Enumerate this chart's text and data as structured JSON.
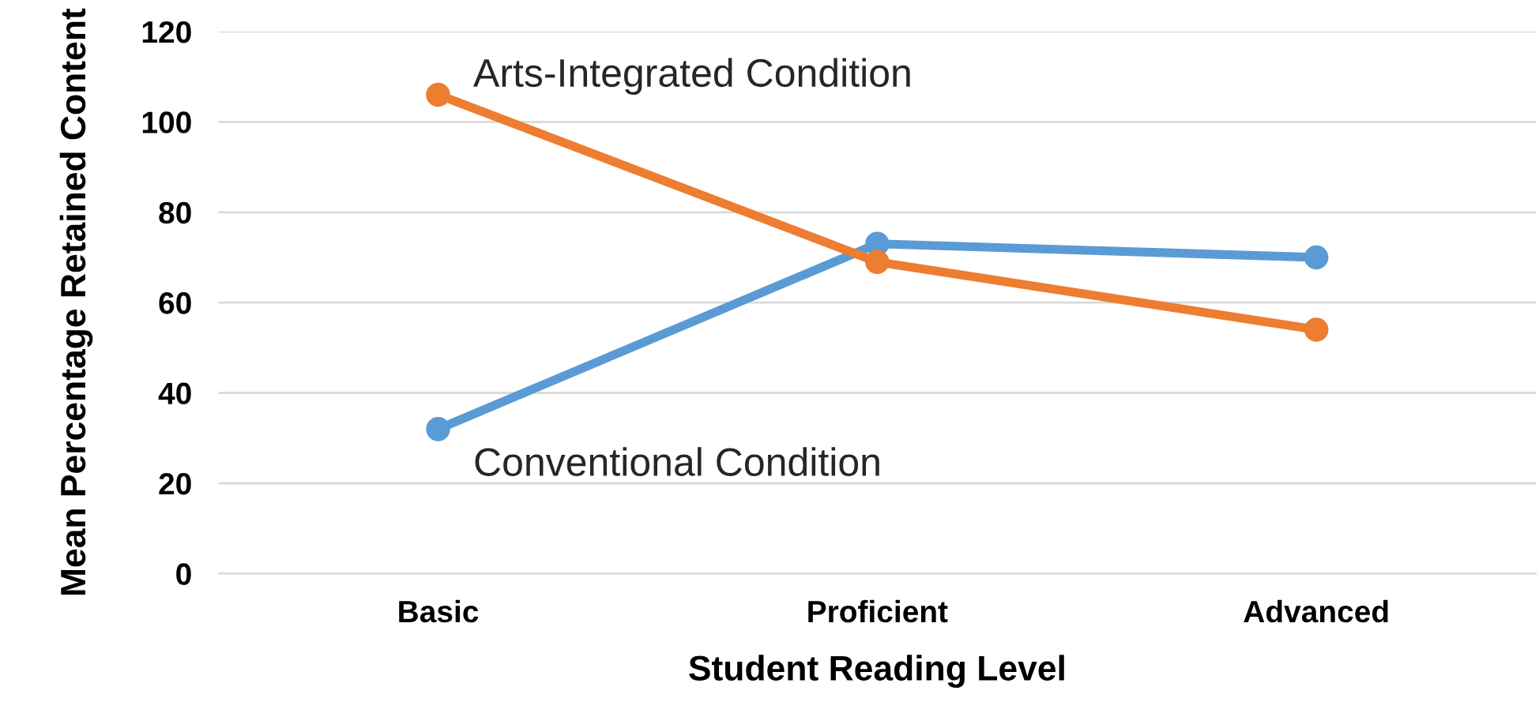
{
  "chart_data": {
    "type": "line",
    "xlabel": "Student Reading Level",
    "ylabel": "Mean Percentage Retained Content",
    "categories": [
      "Basic",
      "Proficient",
      "Advanced"
    ],
    "series": [
      {
        "name": "Conventional Condition",
        "color": "#5b9bd5",
        "values": [
          32,
          73,
          70
        ]
      },
      {
        "name": "Arts-Integrated Condition",
        "color": "#ed7d31",
        "values": [
          106,
          69,
          54
        ]
      }
    ],
    "ylim": [
      0,
      120
    ],
    "yticks": [
      0,
      20,
      40,
      60,
      80,
      100,
      120
    ],
    "grid": "y",
    "marker": "circle",
    "line_style": "solid",
    "legend": false
  }
}
